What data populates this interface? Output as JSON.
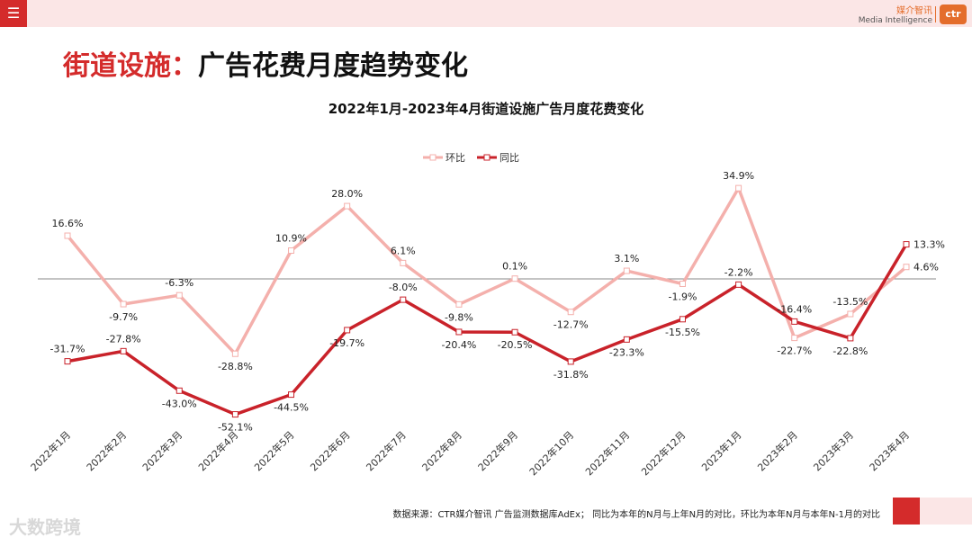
{
  "header": {
    "brand_cn": "媒介智讯",
    "brand_en": "Media Intelligence",
    "logo_text": "ctr",
    "menu_icon": "menu-icon"
  },
  "page": {
    "title_accent": "街道设施：",
    "title_rest": "广告花费月度趋势变化"
  },
  "footer": {
    "source_note": "数据来源：CTR媒介智讯 广告监测数据库AdEx； 同比为本年的N月与上年N月的对比，环比为本年N月与本年N-1月的对比",
    "watermark": "大数跨境"
  },
  "colors": {
    "accent": "#d42b2b",
    "mom_line": "#f4b0ac",
    "yoy_line": "#c9222a"
  },
  "chart_data": {
    "type": "line",
    "title": "2022年1月-2023年4月街道设施广告月度花费变化",
    "legend_position": "top",
    "categories": [
      "2022年1月",
      "2022年2月",
      "2022年3月",
      "2022年4月",
      "2022年5月",
      "2022年6月",
      "2022年7月",
      "2022年8月",
      "2022年9月",
      "2022年10月",
      "2022年11月",
      "2022年12月",
      "2023年1月",
      "2023年2月",
      "2023年3月",
      "2023年4月"
    ],
    "series": [
      {
        "name": "环比",
        "values": [
          16.6,
          -9.7,
          -6.3,
          -28.8,
          10.9,
          28.0,
          6.1,
          -9.8,
          0.1,
          -12.7,
          3.1,
          -1.9,
          34.9,
          -22.7,
          -13.5,
          4.6
        ],
        "labels": [
          "16.6%",
          "-9.7%",
          "-6.3%",
          "-28.8%",
          "10.9%",
          "28.0%",
          "6.1%",
          "-9.8%",
          "0.1%",
          "-12.7%",
          "3.1%",
          "-1.9%",
          "34.9%",
          "-22.7%",
          "-13.5%",
          "4.6%"
        ]
      },
      {
        "name": "同比",
        "values": [
          -31.7,
          -27.8,
          -43.0,
          -52.1,
          -44.5,
          -19.7,
          -8.0,
          -20.4,
          -20.5,
          -31.8,
          -23.3,
          -15.5,
          -2.2,
          -16.4,
          -22.8,
          13.3
        ],
        "labels": [
          "-31.7%",
          "-27.8%",
          "-43.0%",
          "-52.1%",
          "-44.5%",
          "-19.7%",
          "-8.0%",
          "-20.4%",
          "-20.5%",
          "-31.8%",
          "-23.3%",
          "-15.5%",
          "-2.2%",
          "-16.4%",
          "-22.8%",
          "13.3%"
        ]
      }
    ],
    "ylim": [
      -60,
      40
    ],
    "xlabel": "",
    "ylabel": "",
    "grid": false
  }
}
